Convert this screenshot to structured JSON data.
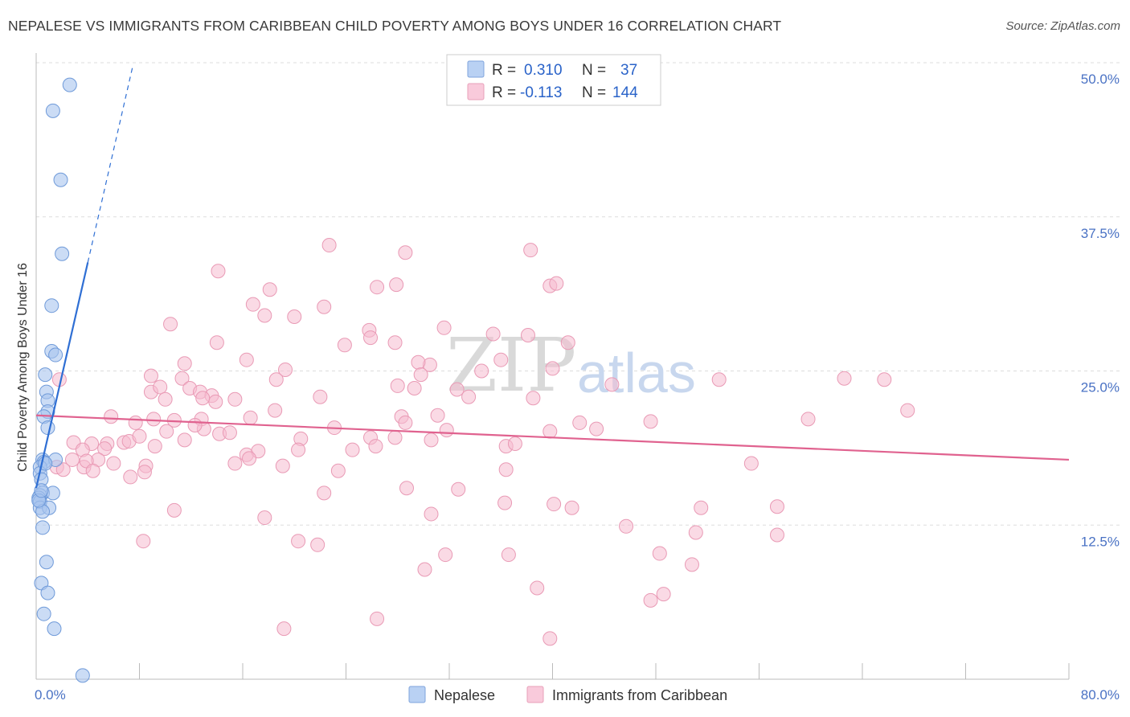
{
  "header": {
    "title": "NEPALESE VS IMMIGRANTS FROM CARIBBEAN CHILD POVERTY AMONG BOYS UNDER 16 CORRELATION CHART",
    "source": "Source: ZipAtlas.com"
  },
  "watermark": {
    "zip": "ZIP",
    "atlas": "atlas"
  },
  "legend": {
    "rows": [
      {
        "r_label": "R =",
        "r_value": "0.310",
        "n_label": "N =",
        "n_value": "37"
      },
      {
        "r_label": "R =",
        "r_value": "-0.113",
        "n_label": "N =",
        "n_value": "144"
      }
    ]
  },
  "bottom_legend": [
    "Nepalese",
    "Immigrants from Caribbean"
  ],
  "colors": {
    "nepalese_fill": "#a9c4ee",
    "nepalese_stroke": "#6f9ad9",
    "nepalese_line": "#2f6fd4",
    "caribbean_fill": "#f6bcd0",
    "caribbean_stroke": "#e99ab5",
    "caribbean_line": "#e0628f",
    "axis_label": "#4a72c4",
    "grid": "#dddddd"
  },
  "chart_data": {
    "type": "scatter",
    "xlabel": "",
    "ylabel": "Child Poverty Among Boys Under 16",
    "xlim": [
      0,
      80
    ],
    "ylim": [
      0,
      50
    ],
    "x_tick_labels": [
      "0.0%",
      "80.0%"
    ],
    "y_ticks": [
      12.5,
      25.0,
      37.5,
      50.0
    ],
    "y_tick_labels": [
      "12.5%",
      "25.0%",
      "37.5%",
      "50.0%"
    ],
    "grid": "horizontal dashed",
    "series": [
      {
        "name": "Nepalese",
        "points": [
          [
            2.6,
            48.2
          ],
          [
            1.3,
            46.1
          ],
          [
            1.9,
            40.5
          ],
          [
            2.0,
            34.5
          ],
          [
            1.2,
            30.3
          ],
          [
            1.2,
            26.6
          ],
          [
            1.5,
            26.3
          ],
          [
            0.7,
            24.7
          ],
          [
            0.8,
            23.3
          ],
          [
            0.9,
            22.6
          ],
          [
            0.9,
            21.7
          ],
          [
            0.6,
            21.3
          ],
          [
            0.9,
            20.4
          ],
          [
            0.5,
            17.8
          ],
          [
            0.6,
            17.6
          ],
          [
            0.3,
            17.2
          ],
          [
            0.3,
            16.7
          ],
          [
            1.5,
            17.8
          ],
          [
            0.4,
            16.2
          ],
          [
            0.5,
            15.1
          ],
          [
            0.3,
            14.9
          ],
          [
            1.3,
            15.1
          ],
          [
            0.2,
            14.7
          ],
          [
            0.3,
            14.4
          ],
          [
            0.3,
            13.9
          ],
          [
            1.0,
            13.9
          ],
          [
            0.5,
            13.6
          ],
          [
            0.5,
            12.3
          ],
          [
            0.8,
            9.5
          ],
          [
            0.4,
            7.8
          ],
          [
            0.9,
            7.0
          ],
          [
            0.6,
            5.3
          ],
          [
            1.4,
            4.1
          ],
          [
            3.6,
            0.3
          ],
          [
            0.2,
            14.5
          ],
          [
            0.4,
            15.3
          ],
          [
            0.7,
            17.5
          ]
        ],
        "trend": {
          "x1": 0.0,
          "y1": 15.5,
          "x2": 4.0,
          "y2": 33.8,
          "dash_x2": 7.5,
          "dash_y2": 49.8
        }
      },
      {
        "name": "Immigrants from Caribbean",
        "points": [
          [
            22.7,
            35.2
          ],
          [
            28.6,
            34.6
          ],
          [
            38.3,
            34.8
          ],
          [
            14.1,
            33.1
          ],
          [
            18.1,
            31.6
          ],
          [
            26.4,
            31.8
          ],
          [
            27.9,
            32.0
          ],
          [
            39.8,
            31.9
          ],
          [
            40.3,
            32.1
          ],
          [
            16.8,
            30.4
          ],
          [
            22.3,
            30.2
          ],
          [
            17.7,
            29.5
          ],
          [
            20.0,
            29.4
          ],
          [
            10.4,
            28.8
          ],
          [
            31.6,
            28.5
          ],
          [
            25.8,
            28.3
          ],
          [
            35.4,
            28.0
          ],
          [
            38.1,
            27.9
          ],
          [
            25.9,
            27.7
          ],
          [
            14.0,
            27.3
          ],
          [
            23.9,
            27.1
          ],
          [
            27.8,
            27.3
          ],
          [
            41.2,
            27.3
          ],
          [
            16.3,
            25.9
          ],
          [
            36.0,
            25.9
          ],
          [
            11.5,
            25.6
          ],
          [
            30.5,
            25.5
          ],
          [
            29.6,
            25.7
          ],
          [
            19.3,
            25.1
          ],
          [
            34.5,
            25.0
          ],
          [
            29.8,
            24.7
          ],
          [
            18.6,
            24.3
          ],
          [
            8.9,
            24.6
          ],
          [
            11.3,
            24.4
          ],
          [
            1.8,
            24.3
          ],
          [
            40.0,
            25.2
          ],
          [
            52.9,
            24.3
          ],
          [
            62.6,
            24.4
          ],
          [
            65.7,
            24.3
          ],
          [
            28.0,
            23.8
          ],
          [
            32.6,
            23.5
          ],
          [
            8.9,
            23.3
          ],
          [
            9.6,
            23.7
          ],
          [
            11.9,
            23.6
          ],
          [
            29.3,
            23.6
          ],
          [
            44.6,
            23.9
          ],
          [
            10.0,
            22.7
          ],
          [
            12.7,
            23.3
          ],
          [
            13.6,
            23.0
          ],
          [
            33.5,
            22.9
          ],
          [
            38.5,
            22.8
          ],
          [
            13.9,
            22.5
          ],
          [
            12.9,
            22.8
          ],
          [
            15.4,
            22.7
          ],
          [
            22.0,
            22.9
          ],
          [
            18.5,
            21.8
          ],
          [
            28.3,
            21.3
          ],
          [
            31.1,
            21.4
          ],
          [
            5.8,
            21.3
          ],
          [
            9.1,
            21.1
          ],
          [
            10.7,
            21.0
          ],
          [
            12.8,
            21.1
          ],
          [
            16.6,
            21.2
          ],
          [
            7.7,
            20.8
          ],
          [
            28.6,
            20.8
          ],
          [
            31.8,
            20.2
          ],
          [
            39.8,
            20.1
          ],
          [
            42.1,
            20.8
          ],
          [
            47.6,
            20.9
          ],
          [
            59.8,
            21.1
          ],
          [
            67.5,
            21.8
          ],
          [
            13.0,
            20.3
          ],
          [
            14.2,
            19.9
          ],
          [
            10.1,
            20.1
          ],
          [
            12.3,
            20.6
          ],
          [
            23.1,
            20.4
          ],
          [
            20.5,
            19.5
          ],
          [
            25.9,
            19.6
          ],
          [
            27.8,
            19.6
          ],
          [
            30.6,
            19.4
          ],
          [
            43.4,
            20.3
          ],
          [
            2.9,
            19.2
          ],
          [
            4.3,
            19.1
          ],
          [
            5.5,
            19.1
          ],
          [
            6.8,
            19.2
          ],
          [
            7.2,
            19.3
          ],
          [
            8.0,
            19.7
          ],
          [
            11.5,
            19.4
          ],
          [
            15.0,
            20.0
          ],
          [
            26.3,
            18.9
          ],
          [
            36.4,
            18.9
          ],
          [
            37.1,
            19.1
          ],
          [
            3.6,
            18.6
          ],
          [
            5.3,
            18.7
          ],
          [
            9.2,
            18.9
          ],
          [
            15.4,
            17.5
          ],
          [
            16.3,
            18.2
          ],
          [
            17.2,
            18.5
          ],
          [
            20.3,
            18.6
          ],
          [
            24.5,
            18.6
          ],
          [
            4.8,
            17.8
          ],
          [
            1.6,
            17.2
          ],
          [
            3.7,
            17.2
          ],
          [
            6.0,
            17.5
          ],
          [
            8.5,
            17.3
          ],
          [
            8.4,
            16.8
          ],
          [
            19.1,
            17.3
          ],
          [
            23.4,
            16.9
          ],
          [
            2.1,
            17.0
          ],
          [
            3.9,
            17.7
          ],
          [
            2.8,
            17.8
          ],
          [
            4.4,
            16.9
          ],
          [
            36.4,
            17.0
          ],
          [
            55.4,
            17.5
          ],
          [
            7.3,
            16.4
          ],
          [
            22.3,
            15.1
          ],
          [
            28.7,
            15.5
          ],
          [
            32.7,
            15.4
          ],
          [
            36.3,
            14.3
          ],
          [
            51.5,
            13.9
          ],
          [
            57.4,
            14.0
          ],
          [
            10.7,
            13.7
          ],
          [
            17.7,
            13.1
          ],
          [
            30.6,
            13.4
          ],
          [
            40.1,
            14.2
          ],
          [
            45.7,
            12.4
          ],
          [
            41.5,
            13.9
          ],
          [
            51.1,
            11.9
          ],
          [
            57.4,
            11.7
          ],
          [
            21.8,
            10.9
          ],
          [
            36.6,
            10.1
          ],
          [
            48.3,
            10.2
          ],
          [
            30.1,
            8.9
          ],
          [
            38.8,
            7.4
          ],
          [
            50.8,
            9.3
          ],
          [
            47.6,
            6.4
          ],
          [
            19.2,
            4.1
          ],
          [
            26.4,
            4.9
          ],
          [
            39.8,
            3.3
          ],
          [
            8.3,
            11.2
          ],
          [
            20.3,
            11.2
          ],
          [
            31.7,
            10.1
          ],
          [
            16.5,
            17.9
          ],
          [
            48.6,
            6.9
          ]
        ],
        "trend": {
          "x1": 0.0,
          "y1": 21.4,
          "x2": 80.0,
          "y2": 17.8
        }
      }
    ]
  }
}
